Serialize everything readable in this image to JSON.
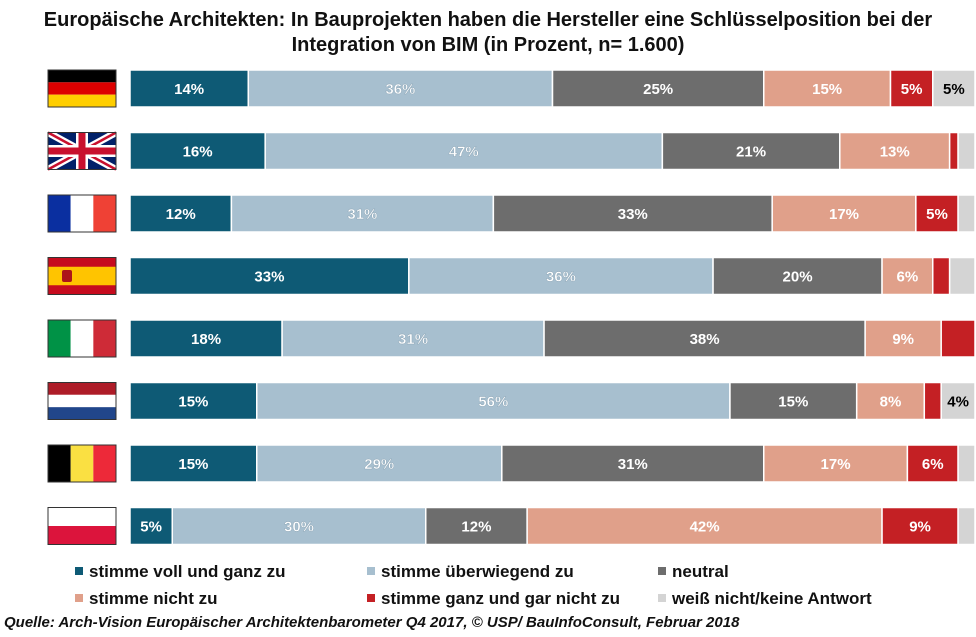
{
  "chart_data": {
    "type": "bar",
    "stacked": true,
    "orientation": "horizontal",
    "title_line1": "Europäische Architekten: In Bauprojekten haben die Hersteller eine Schlüsselposition bei der",
    "title_line2": "Integration von BIM (in Prozent, n= 1.600)",
    "categories": [
      "Deutschland",
      "Vereinigtes Königreich",
      "Frankreich",
      "Spanien",
      "Italien",
      "Niederlande",
      "Belgien",
      "Polen"
    ],
    "category_icons": [
      "flag-de-icon",
      "flag-uk-icon",
      "flag-fr-icon",
      "flag-es-icon",
      "flag-it-icon",
      "flag-nl-icon",
      "flag-be-icon",
      "flag-pl-icon"
    ],
    "series": [
      {
        "name": "stimme voll und ganz zu",
        "color": "#0e5a75",
        "values": [
          14,
          16,
          12,
          33,
          18,
          15,
          15,
          5
        ],
        "labels": [
          "14%",
          "16%",
          "12%",
          "33%",
          "18%",
          "15%",
          "15%",
          "5%"
        ]
      },
      {
        "name": "stimme überwiegend zu",
        "color": "#a7bfcf",
        "values": [
          36,
          47,
          31,
          36,
          31,
          56,
          29,
          30
        ],
        "labels": [
          "36%",
          "47%",
          "31%",
          "36%",
          "31%",
          "56%",
          "29%",
          "30%"
        ]
      },
      {
        "name": "neutral",
        "color": "#6d6d6d",
        "values": [
          25,
          21,
          33,
          20,
          38,
          15,
          31,
          12
        ],
        "labels": [
          "25%",
          "21%",
          "33%",
          "20%",
          "38%",
          "15%",
          "31%",
          "12%"
        ]
      },
      {
        "name": "stimme nicht zu",
        "color": "#e0a08a",
        "values": [
          15,
          13,
          17,
          6,
          9,
          8,
          17,
          42
        ],
        "labels": [
          "15%",
          "13%",
          "17%",
          "6%",
          "9%",
          "8%",
          "17%",
          "42%"
        ]
      },
      {
        "name": "stimme ganz und gar nicht zu",
        "color": "#c42024",
        "values": [
          5,
          1,
          5,
          2,
          4,
          2,
          6,
          9
        ],
        "labels": [
          "5%",
          "",
          "5%",
          "",
          "",
          "",
          "6%",
          "9%"
        ]
      },
      {
        "name": "weiß nicht/keine Antwort",
        "color": "#d4d4d4",
        "values": [
          5,
          2,
          2,
          3,
          0,
          4,
          2,
          2
        ],
        "labels": [
          "5%",
          "",
          "",
          "",
          "",
          "4%",
          "",
          ""
        ]
      }
    ],
    "xlim": [
      0,
      100
    ],
    "grid": false,
    "legend_position": "bottom"
  },
  "source": "Quelle: Arch-Vision Europäischer Architektenbarometer Q4 2017, © USP/ BauInfoConsult, Februar 2018"
}
